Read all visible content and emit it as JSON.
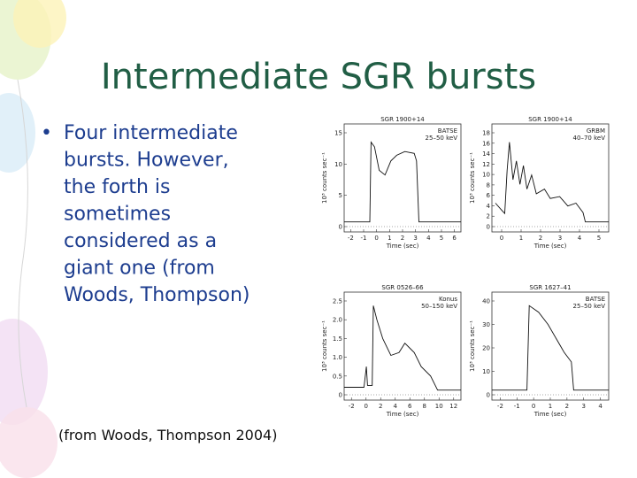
{
  "title": "Intermediate SGR bursts",
  "bullets": [
    "Four intermediate",
    "bursts. However,",
    "the forth is",
    "sometimes",
    "considered as a",
    "giant one (from",
    "Woods, Thompson)"
  ],
  "footnote": "(from Woods, Thompson 2004)",
  "panels": [
    {
      "title": "SGR 1900+14",
      "instrument": [
        "BATSE",
        "25–50 keV"
      ],
      "xlabel": "Time (sec)",
      "ylabel": "10³ counts sec⁻¹",
      "xticks": [
        "-2",
        "-1",
        "0",
        "1",
        "2",
        "3",
        "4",
        "5",
        "6"
      ],
      "yticks": [
        "0",
        "5",
        "10",
        "15"
      ]
    },
    {
      "title": "SGR 1900+14",
      "instrument": [
        "GRBM",
        "40–70 keV"
      ],
      "xlabel": "Time (sec)",
      "ylabel": "10³ counts sec⁻¹",
      "xticks": [
        "0",
        "1",
        "2",
        "3",
        "4",
        "5"
      ],
      "yticks": [
        "0",
        "2",
        "4",
        "6",
        "8",
        "10",
        "12",
        "14",
        "16",
        "18"
      ]
    },
    {
      "title": "SGR 0526–66",
      "instrument": [
        "Konus",
        "50–150 keV"
      ],
      "xlabel": "Time (sec)",
      "ylabel": "10³ counts sec⁻¹",
      "xticks": [
        "-2",
        "0",
        "2",
        "4",
        "6",
        "8",
        "10",
        "12"
      ],
      "yticks": [
        "0",
        "0.5",
        "1.0",
        "1.5",
        "2.0",
        "2.5"
      ]
    },
    {
      "title": "SGR 1627–41",
      "instrument": [
        "BATSE",
        "25–50 keV"
      ],
      "xlabel": "Time (sec)",
      "ylabel": "10³ counts sec⁻¹",
      "xticks": [
        "-2",
        "-1",
        "0",
        "1",
        "2",
        "3",
        "4"
      ],
      "yticks": [
        "0",
        "10",
        "20",
        "30",
        "40"
      ]
    }
  ]
}
